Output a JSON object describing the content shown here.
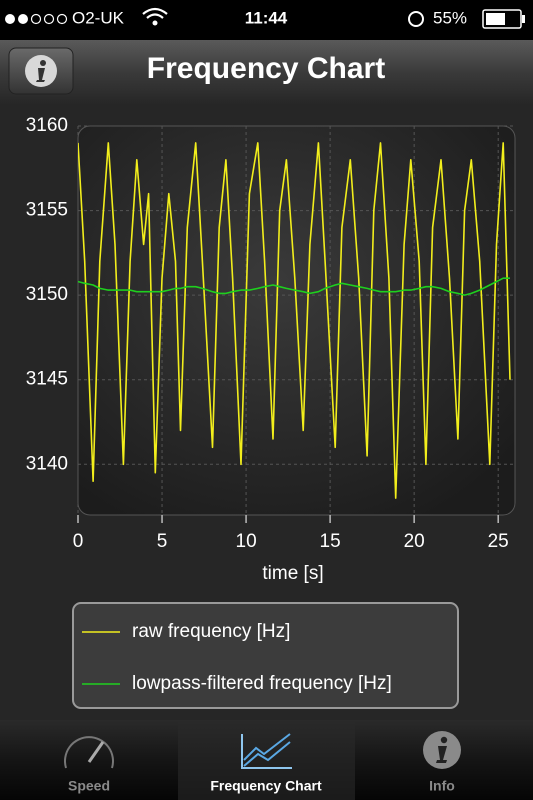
{
  "status_bar": {
    "carrier": "O2-UK",
    "time": "11:44",
    "battery": "55%"
  },
  "nav_bar": {
    "title": "Frequency Chart"
  },
  "tab_bar": {
    "tabs": [
      "Speed",
      "Frequency Chart",
      "Info"
    ],
    "selected": 1
  },
  "chart_data": {
    "type": "line",
    "xlabel": "time [s]",
    "x": [
      0.0,
      0.4,
      0.9,
      1.3,
      1.8,
      2.2,
      2.7,
      3.1,
      3.5,
      3.9,
      4.2,
      4.6,
      5.0,
      5.4,
      5.8,
      6.1,
      6.5,
      7.0,
      7.4,
      8.0,
      8.4,
      8.8,
      9.2,
      9.7,
      10.2,
      10.7,
      11.1,
      11.6,
      12.0,
      12.4,
      12.9,
      13.4,
      13.8,
      14.3,
      14.7,
      15.3,
      15.7,
      16.2,
      16.7,
      17.2,
      17.6,
      18.0,
      18.5,
      18.9,
      19.4,
      19.8,
      20.3,
      20.7,
      21.1,
      21.6,
      22.1,
      22.6,
      23.0,
      23.4,
      23.9,
      24.5,
      24.9,
      25.3,
      25.7
    ],
    "series": [
      {
        "name": "raw frequency [Hz]",
        "color": "#f2ee1c",
        "values": [
          3159,
          3152,
          3139,
          3152,
          3159,
          3153,
          3140,
          3152,
          3158,
          3153,
          3156,
          3139.5,
          3151,
          3156,
          3152,
          3142,
          3154,
          3159,
          3152,
          3141,
          3154,
          3158,
          3151,
          3140,
          3156,
          3159,
          3152,
          3141.5,
          3155,
          3158,
          3151,
          3142,
          3153,
          3159,
          3152,
          3141,
          3154,
          3158,
          3151,
          3140.5,
          3155,
          3159,
          3151,
          3138,
          3153,
          3158,
          3152,
          3140,
          3154,
          3158,
          3151,
          3141.5,
          3155,
          3158,
          3152,
          3140,
          3153,
          3159,
          3145
        ]
      },
      {
        "name": "lowpass-filtered frequency [Hz]",
        "color": "#1ed01e",
        "values": [
          3150.8,
          3150.7,
          3150.6,
          3150.4,
          3150.3,
          3150.3,
          3150.3,
          3150.3,
          3150.2,
          3150.2,
          3150.2,
          3150.2,
          3150.2,
          3150.3,
          3150.4,
          3150.4,
          3150.5,
          3150.5,
          3150.4,
          3150.2,
          3150.1,
          3150.1,
          3150.2,
          3150.3,
          3150.3,
          3150.4,
          3150.5,
          3150.6,
          3150.5,
          3150.4,
          3150.3,
          3150.2,
          3150.1,
          3150.2,
          3150.4,
          3150.6,
          3150.7,
          3150.6,
          3150.5,
          3150.4,
          3150.3,
          3150.2,
          3150.2,
          3150.2,
          3150.3,
          3150.3,
          3150.4,
          3150.5,
          3150.5,
          3150.4,
          3150.2,
          3150.1,
          3150.0,
          3150.1,
          3150.3,
          3150.6,
          3150.8,
          3151.0,
          3151.0
        ]
      }
    ],
    "xlim": [
      0,
      26
    ],
    "ylim": [
      3137,
      3160
    ],
    "xticks": [
      0,
      5,
      10,
      15,
      20,
      25
    ],
    "yticks": [
      3140,
      3145,
      3150,
      3155,
      3160
    ],
    "grid": true,
    "legend": "bottom"
  }
}
